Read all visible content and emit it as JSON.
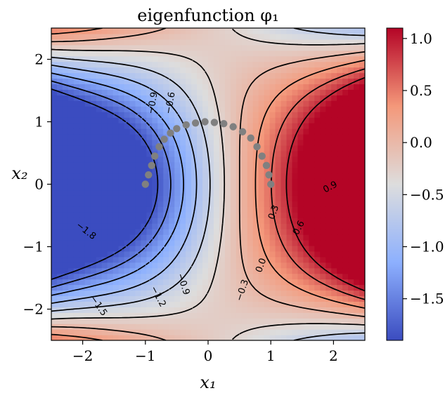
{
  "chart_data": {
    "type": "heatmap",
    "title": "eigenfunction φ₁",
    "xlabel": "x₁",
    "ylabel": "x₂",
    "xlim": [
      -2.5,
      2.5
    ],
    "ylim": [
      -2.5,
      2.5
    ],
    "xticks": [
      -2,
      -1,
      0,
      1,
      2
    ],
    "yticks": [
      -2,
      -1,
      0,
      1,
      2
    ],
    "xtick_labels": [
      "−2",
      "−1",
      "0",
      "1",
      "2"
    ],
    "ytick_labels": [
      "−2",
      "−1",
      "0",
      "1",
      "2"
    ],
    "colormap": "coolwarm",
    "color_range": [
      -1.9,
      1.1
    ],
    "colorbar_ticks": [
      1.0,
      0.5,
      0.0,
      -0.5,
      -1.0,
      -1.5
    ],
    "colorbar_tick_labels": [
      "1.0",
      "0.5",
      "0.0",
      "−0.5",
      "−1.0",
      "−1.5"
    ],
    "contour_levels": [
      -1.8,
      -1.5,
      -1.2,
      -0.9,
      -0.6,
      -0.3,
      0.0,
      0.3,
      0.6,
      0.9
    ],
    "contour_labels": [
      {
        "text": "−1.8",
        "x": -1.95,
        "y": -0.75,
        "angle": 38
      },
      {
        "text": "−1.5",
        "x": -1.75,
        "y": -1.95,
        "angle": 55
      },
      {
        "text": "−1.2",
        "x": -0.8,
        "y": -1.8,
        "angle": 62
      },
      {
        "text": "−0.9",
        "x": -0.88,
        "y": 1.3,
        "angle": -80
      },
      {
        "text": "−0.9",
        "x": -0.4,
        "y": -1.6,
        "angle": 72
      },
      {
        "text": "−0.6",
        "x": -0.6,
        "y": 1.3,
        "angle": -80
      },
      {
        "text": "−0.3",
        "x": 0.55,
        "y": -1.7,
        "angle": -72
      },
      {
        "text": "0.0",
        "x": 0.85,
        "y": -1.3,
        "angle": -70
      },
      {
        "text": "0.3",
        "x": 1.05,
        "y": -0.45,
        "angle": -70
      },
      {
        "text": "0.6",
        "x": 1.45,
        "y": -0.7,
        "angle": -62
      },
      {
        "text": "0.9",
        "x": 1.95,
        "y": -0.05,
        "angle": -28
      }
    ],
    "points": [
      [
        -1.0,
        0.0
      ],
      [
        -0.95,
        0.15
      ],
      [
        -0.9,
        0.3
      ],
      [
        -0.85,
        0.45
      ],
      [
        -0.78,
        0.6
      ],
      [
        -0.7,
        0.72
      ],
      [
        -0.6,
        0.82
      ],
      [
        -0.5,
        0.89
      ],
      [
        -0.35,
        0.95
      ],
      [
        -0.2,
        0.98
      ],
      [
        -0.05,
        1.0
      ],
      [
        0.1,
        0.99
      ],
      [
        0.25,
        0.97
      ],
      [
        0.4,
        0.92
      ],
      [
        0.55,
        0.84
      ],
      [
        0.68,
        0.74
      ],
      [
        0.78,
        0.6
      ],
      [
        0.86,
        0.45
      ],
      [
        0.93,
        0.3
      ],
      [
        0.97,
        0.15
      ],
      [
        1.0,
        0.0
      ]
    ],
    "point_color": "#808080"
  }
}
